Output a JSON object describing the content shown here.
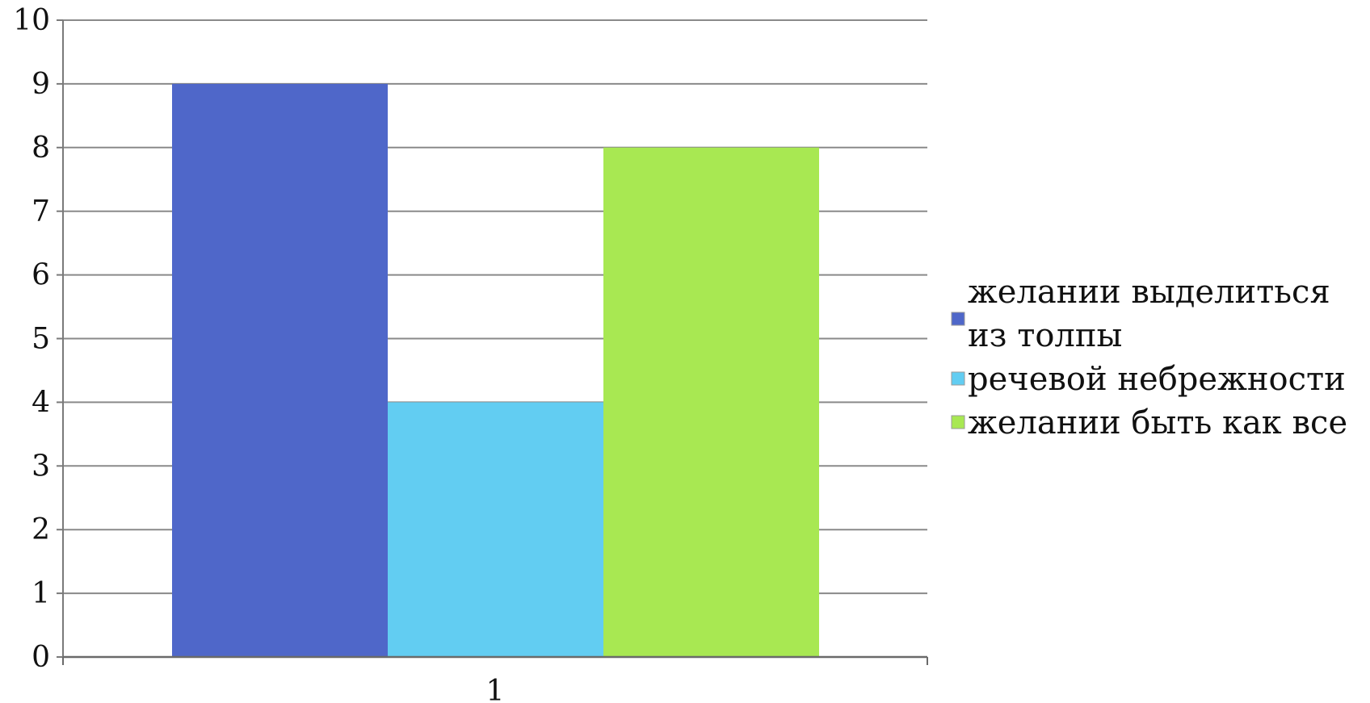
{
  "chart_data": {
    "type": "bar",
    "categories": [
      "1"
    ],
    "series": [
      {
        "name": "желании выделиться из толпы",
        "values": [
          9
        ],
        "color": "#4f67c9"
      },
      {
        "name": "речевой небрежности",
        "values": [
          4
        ],
        "color": "#62cdf2"
      },
      {
        "name": "желании быть как все",
        "values": [
          8
        ],
        "color": "#a8e852"
      }
    ],
    "ylim": [
      0,
      10
    ],
    "yticks": [
      0,
      1,
      2,
      3,
      4,
      5,
      6,
      7,
      8,
      9,
      10
    ],
    "grid": true,
    "legend_position": "right",
    "legend": [
      {
        "lines": [
          "желании выделиться",
          "из толпы"
        ]
      },
      {
        "lines": [
          "речевой небрежности"
        ]
      },
      {
        "lines": [
          "желании быть как все"
        ]
      }
    ]
  }
}
